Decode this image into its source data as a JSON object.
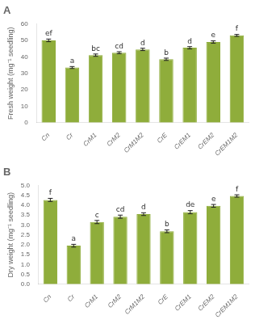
{
  "chart_data": [
    {
      "type": "bar",
      "title": "A",
      "categories": [
        "Cn",
        "Cr",
        "CrM1",
        "CrM2",
        "CrM1M2",
        "CrE",
        "CrEM1",
        "CrEM2",
        "CrEM1M2"
      ],
      "values": [
        50.0,
        33.5,
        41.0,
        42.5,
        44.5,
        38.5,
        45.5,
        49.0,
        53.0
      ],
      "errors": [
        0.8,
        0.6,
        0.7,
        0.6,
        0.7,
        0.7,
        0.7,
        0.7,
        0.6
      ],
      "annotations": [
        "ef",
        "a",
        "bc",
        "cd",
        "d",
        "b",
        "d",
        "e",
        "f"
      ],
      "color": "#8fad3b",
      "y_label": "Fresh weight (mg⁻¹ seedling)",
      "ylim": [
        0,
        60
      ],
      "yticks": [
        0,
        10,
        20,
        30,
        40,
        50,
        60
      ],
      "grid": false
    },
    {
      "type": "bar",
      "title": "B",
      "categories": [
        "Cn",
        "Cr",
        "CrM1",
        "CrM2",
        "CrM1M2",
        "CrE",
        "CrEM1",
        "CrEM2",
        "CrEM1M2"
      ],
      "values": [
        4.27,
        1.95,
        3.15,
        3.42,
        3.55,
        2.68,
        3.65,
        3.97,
        4.47
      ],
      "errors": [
        0.08,
        0.07,
        0.08,
        0.08,
        0.07,
        0.07,
        0.08,
        0.07,
        0.06
      ],
      "annotations": [
        "f",
        "a",
        "c",
        "cd",
        "d",
        "b",
        "de",
        "e",
        "f"
      ],
      "color": "#8fad3b",
      "y_label": "Dry weight (mg⁻¹ seedling)",
      "ylim": [
        0,
        5
      ],
      "yticks": [
        {
          "value": 0,
          "label": "0.0"
        },
        0.5,
        {
          "value": 1,
          "label": "1.0"
        },
        1.5,
        {
          "value": 2,
          "label": "2.0"
        },
        2.5,
        {
          "value": 3,
          "label": "3.0"
        },
        3.5,
        {
          "value": 4,
          "label": "4.0"
        },
        4.5,
        {
          "value": 5,
          "label": "5.0"
        }
      ],
      "grid": false
    }
  ]
}
